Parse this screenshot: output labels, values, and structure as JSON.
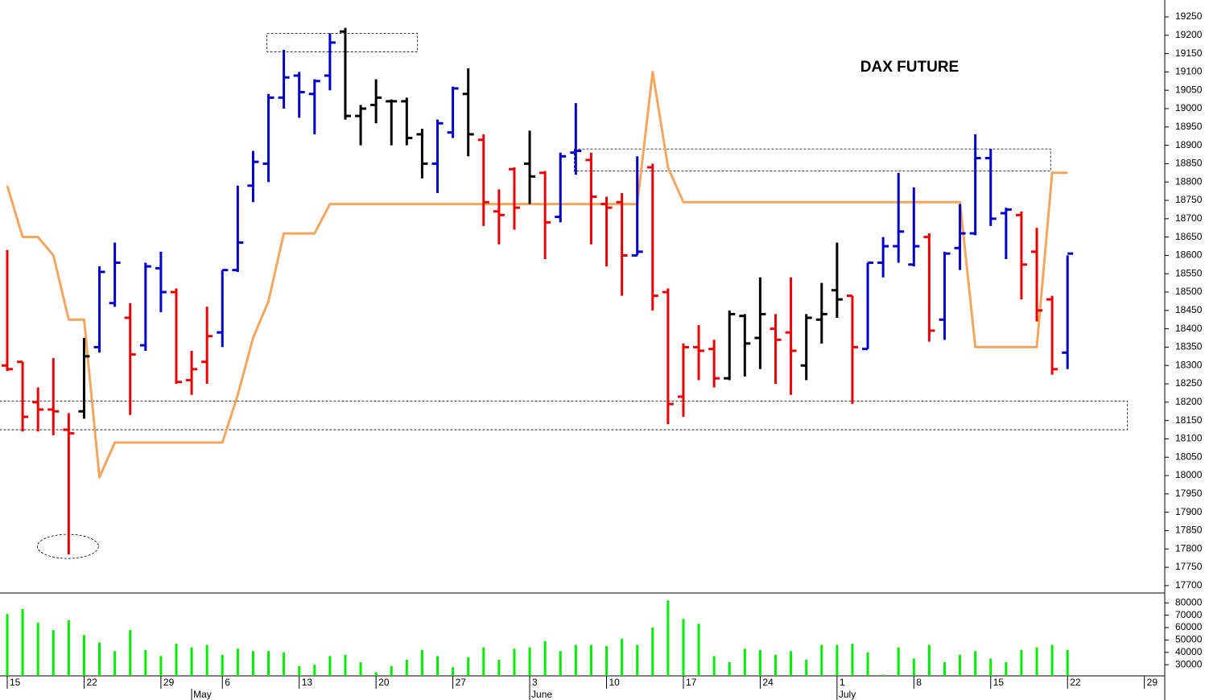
{
  "chart_data": [
    {
      "type": "ohlc",
      "title": "DAX FUTURE",
      "categories": [
        "15",
        null,
        null,
        null,
        null,
        "22",
        null,
        null,
        null,
        null,
        "29",
        null,
        null,
        null,
        "6",
        null,
        null,
        null,
        null,
        "13",
        null,
        null,
        null,
        null,
        "20",
        null,
        null,
        null,
        null,
        "27",
        null,
        null,
        null,
        null,
        "3",
        null,
        null,
        null,
        null,
        "10",
        null,
        null,
        null,
        null,
        "17",
        null,
        null,
        null,
        null,
        "24",
        null,
        null,
        null,
        null,
        "1",
        null,
        null,
        null,
        null,
        "8",
        null,
        null,
        null,
        null,
        "15",
        null,
        null,
        null,
        null,
        "22",
        null,
        null,
        null,
        null,
        "29"
      ],
      "months": [
        {
          "index": 12,
          "label": "May"
        },
        {
          "index": 34,
          "label": "June"
        },
        {
          "index": 54,
          "label": "July"
        }
      ],
      "open": [
        18300,
        18310,
        18200,
        18180,
        18125,
        18175,
        18350,
        18470,
        18430,
        18355,
        18565,
        18500,
        18260,
        18310,
        18390,
        18560,
        18790,
        18850,
        19030,
        19090,
        19040,
        19090,
        19210,
        18980,
        19010,
        19020,
        19020,
        18930,
        18850,
        18935,
        19040,
        18915,
        18720,
        18835,
        18850,
        18825,
        18705,
        18880,
        18860,
        18740,
        18745,
        18600,
        18840,
        18500,
        18215,
        18350,
        18345,
        18265,
        18435,
        18375,
        18400,
        18390,
        18300,
        18425,
        18505,
        18490,
        18345,
        18580,
        18625,
        18575,
        18650,
        18425,
        18620,
        18660,
        18865,
        18715,
        18710,
        18610,
        18480,
        18335,
        null,
        null,
        null,
        null,
        null
      ],
      "high": [
        18615,
        18310,
        18240,
        18320,
        18170,
        18375,
        18570,
        18635,
        18470,
        18580,
        18610,
        18510,
        18340,
        18460,
        18560,
        18790,
        18885,
        19040,
        19160,
        19100,
        19080,
        19205,
        19220,
        19010,
        19080,
        19025,
        19030,
        18945,
        18970,
        19060,
        19110,
        18930,
        18780,
        18840,
        18940,
        18830,
        18880,
        19015,
        18880,
        18760,
        18770,
        18870,
        18850,
        18510,
        18360,
        18410,
        18370,
        18450,
        18440,
        18540,
        18440,
        18540,
        18440,
        18525,
        18635,
        18490,
        18580,
        18650,
        18825,
        18785,
        18660,
        18610,
        18740,
        18930,
        18890,
        18730,
        18720,
        18675,
        18490,
        18600,
        null,
        null,
        null,
        null,
        null
      ],
      "low": [
        18285,
        18120,
        18120,
        18110,
        17785,
        18155,
        18335,
        18460,
        18165,
        18340,
        18445,
        18250,
        18220,
        18250,
        18350,
        18555,
        18745,
        18800,
        19000,
        18975,
        18930,
        19050,
        18970,
        18900,
        18960,
        18900,
        18900,
        18810,
        18770,
        18920,
        18870,
        18680,
        18630,
        18670,
        18740,
        18590,
        18690,
        18820,
        18630,
        18570,
        18490,
        18600,
        18450,
        18140,
        18160,
        18260,
        18240,
        18260,
        18270,
        18290,
        18250,
        18220,
        18260,
        18360,
        18430,
        18195,
        18345,
        18540,
        18580,
        18570,
        18365,
        18370,
        18560,
        18655,
        18680,
        18590,
        18480,
        18420,
        18275,
        18290,
        null,
        null,
        null,
        null,
        null
      ],
      "close": [
        18290,
        18160,
        18180,
        18175,
        18115,
        18325,
        18555,
        18580,
        18330,
        18570,
        18500,
        18255,
        18290,
        18380,
        18560,
        18635,
        18855,
        19030,
        19085,
        19045,
        19075,
        19180,
        18980,
        19000,
        19030,
        19020,
        18920,
        18850,
        18960,
        19055,
        18930,
        18745,
        18710,
        18730,
        18815,
        18690,
        18870,
        18885,
        18760,
        18730,
        18600,
        18610,
        18490,
        18195,
        18350,
        18340,
        18265,
        18440,
        18360,
        18440,
        18370,
        18340,
        18430,
        18440,
        18480,
        18350,
        18580,
        18625,
        18665,
        18625,
        18395,
        18605,
        18660,
        18865,
        18700,
        18725,
        18575,
        18450,
        18290,
        18605,
        null,
        null,
        null,
        null,
        null
      ],
      "bar_colors": [
        "#ee0000",
        "#ee0000",
        "#ee0000",
        "#ee0000",
        "#ee0000",
        "#000000",
        "#0000cc",
        "#0000cc",
        "#ee0000",
        "#0000cc",
        "#0000cc",
        "#ee0000",
        "#ee0000",
        "#ee0000",
        "#0000cc",
        "#0000cc",
        "#0000cc",
        "#0000cc",
        "#0000cc",
        "#0000cc",
        "#0000cc",
        "#0000cc",
        "#000000",
        "#000000",
        "#000000",
        "#000000",
        "#000000",
        "#000000",
        "#0000cc",
        "#0000cc",
        "#000000",
        "#ee0000",
        "#ee0000",
        "#ee0000",
        "#000000",
        "#ee0000",
        "#0000cc",
        "#0000cc",
        "#ee0000",
        "#ee0000",
        "#ee0000",
        "#0000cc",
        "#ee0000",
        "#ee0000",
        "#ee0000",
        "#ee0000",
        "#ee0000",
        "#000000",
        "#000000",
        "#000000",
        "#ee0000",
        "#ee0000",
        "#000000",
        "#000000",
        "#000000",
        "#ee0000",
        "#0000cc",
        "#0000cc",
        "#0000cc",
        "#0000cc",
        "#ee0000",
        "#0000cc",
        "#0000cc",
        "#0000cc",
        "#0000cc",
        "#0000cc",
        "#ee0000",
        "#ee0000",
        "#ee0000",
        "#0000cc",
        null,
        null,
        null,
        null,
        null
      ],
      "line": {
        "color": "#f5a55c",
        "values": [
          18790,
          18650,
          18650,
          18600,
          18425,
          18425,
          17995,
          18090,
          18090,
          18090,
          18090,
          18090,
          18090,
          18090,
          18090,
          18220,
          18375,
          18475,
          18660,
          18660,
          18660,
          18740,
          18740,
          18740,
          18740,
          18740,
          18740,
          18740,
          18740,
          18740,
          18740,
          18740,
          18740,
          18740,
          18740,
          18740,
          18740,
          18740,
          18740,
          18740,
          18740,
          18740,
          19100,
          18840,
          18745,
          18745,
          18745,
          18745,
          18745,
          18745,
          18745,
          18745,
          18745,
          18745,
          18745,
          18745,
          18745,
          18745,
          18745,
          18745,
          18745,
          18745,
          18745,
          18350,
          18350,
          18350,
          18350,
          18350,
          18825,
          18825,
          null,
          null,
          null,
          null,
          null
        ]
      },
      "zones": [
        {
          "high": 19205,
          "low": 19155,
          "start": 16.9,
          "end": 26.7
        },
        {
          "high": 18890,
          "low": 18830,
          "start": 36.9,
          "end": 67.9
        },
        {
          "high": 18203,
          "low": 18125,
          "start": -0.5,
          "end": 72.9
        }
      ],
      "ylim": [
        17680,
        19296
      ],
      "yticks": [
        17700,
        17750,
        17800,
        17850,
        17900,
        17950,
        18000,
        18050,
        18100,
        18150,
        18200,
        18250,
        18300,
        18350,
        18400,
        18450,
        18500,
        18550,
        18600,
        18650,
        18700,
        18750,
        18800,
        18850,
        18900,
        18950,
        19000,
        19050,
        19100,
        19150,
        19200,
        19250
      ]
    },
    {
      "type": "bar",
      "color": "#00ee00",
      "values": [
        71000,
        75000,
        64000,
        58000,
        66000,
        54000,
        48000,
        41000,
        58000,
        42000,
        37000,
        47000,
        44000,
        46000,
        38000,
        43000,
        41000,
        41000,
        40000,
        29000,
        30000,
        37000,
        38000,
        32000,
        24000,
        29000,
        34000,
        42000,
        37000,
        28000,
        36000,
        44000,
        34000,
        43000,
        44000,
        49000,
        41000,
        46000,
        46000,
        45000,
        51000,
        46000,
        60000,
        82000,
        67000,
        63000,
        37000,
        32000,
        43000,
        42000,
        38000,
        41000,
        34000,
        46000,
        46000,
        47000,
        40000,
        22000,
        44000,
        35000,
        46000,
        32000,
        38000,
        41000,
        35000,
        32000,
        42000,
        44000,
        46000,
        42000,
        null,
        null,
        null,
        null,
        null
      ],
      "ylim": [
        21000,
        88000
      ],
      "yticks": [
        30000,
        40000,
        50000,
        60000,
        70000,
        80000
      ]
    }
  ]
}
